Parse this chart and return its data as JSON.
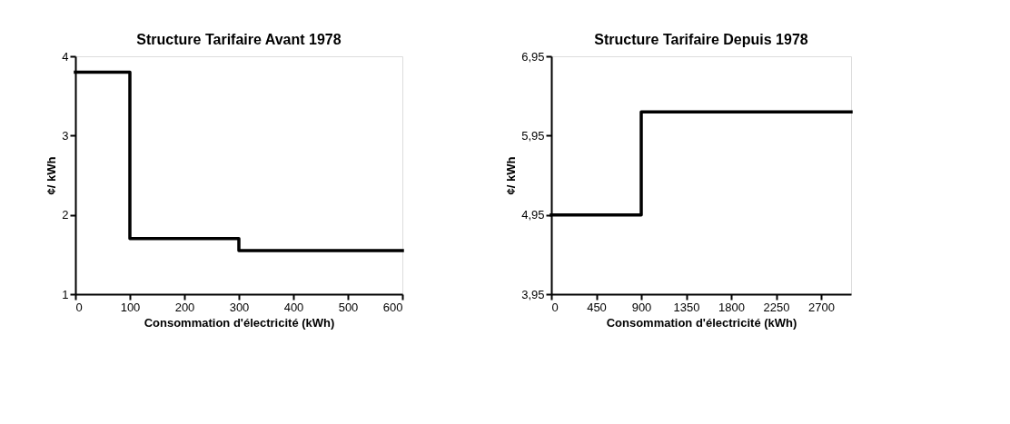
{
  "chart_data": [
    {
      "type": "step",
      "title": "Structure Tarifaire Avant 1978",
      "xlabel": "Consommation d'électricité (kWh)",
      "ylabel": "¢/ kWh",
      "x": [
        0,
        100,
        300,
        600
      ],
      "values": [
        3.8,
        1.7,
        1.55,
        1.55
      ],
      "color": "#000000",
      "xlim": [
        0,
        600
      ],
      "xticks": [
        0,
        100,
        200,
        300,
        400,
        500,
        600
      ],
      "ylim": [
        1,
        4
      ],
      "yticks": [
        1,
        2,
        3,
        4
      ],
      "grid": false,
      "line_style": "solid"
    },
    {
      "type": "step",
      "title": "Structure Tarifaire Depuis 1978",
      "xlabel": "Consommation d'électricité (kWh)",
      "ylabel": "¢/ kWh",
      "x": [
        0,
        900,
        3000
      ],
      "values": [
        4.95,
        6.25,
        6.25
      ],
      "color": "#000000",
      "xlim": [
        0,
        3000
      ],
      "xticks": [
        0,
        450,
        900,
        1350,
        1800,
        2250,
        2700
      ],
      "ylim": [
        3.95,
        6.95
      ],
      "yticks": [
        {
          "value": 3.95,
          "label": "3,95"
        },
        {
          "value": 4.95,
          "label": "4,95"
        },
        {
          "value": 5.95,
          "label": "5,95"
        },
        {
          "value": 6.95,
          "label": "6,95"
        }
      ],
      "grid": false,
      "line_style": "solid"
    }
  ]
}
